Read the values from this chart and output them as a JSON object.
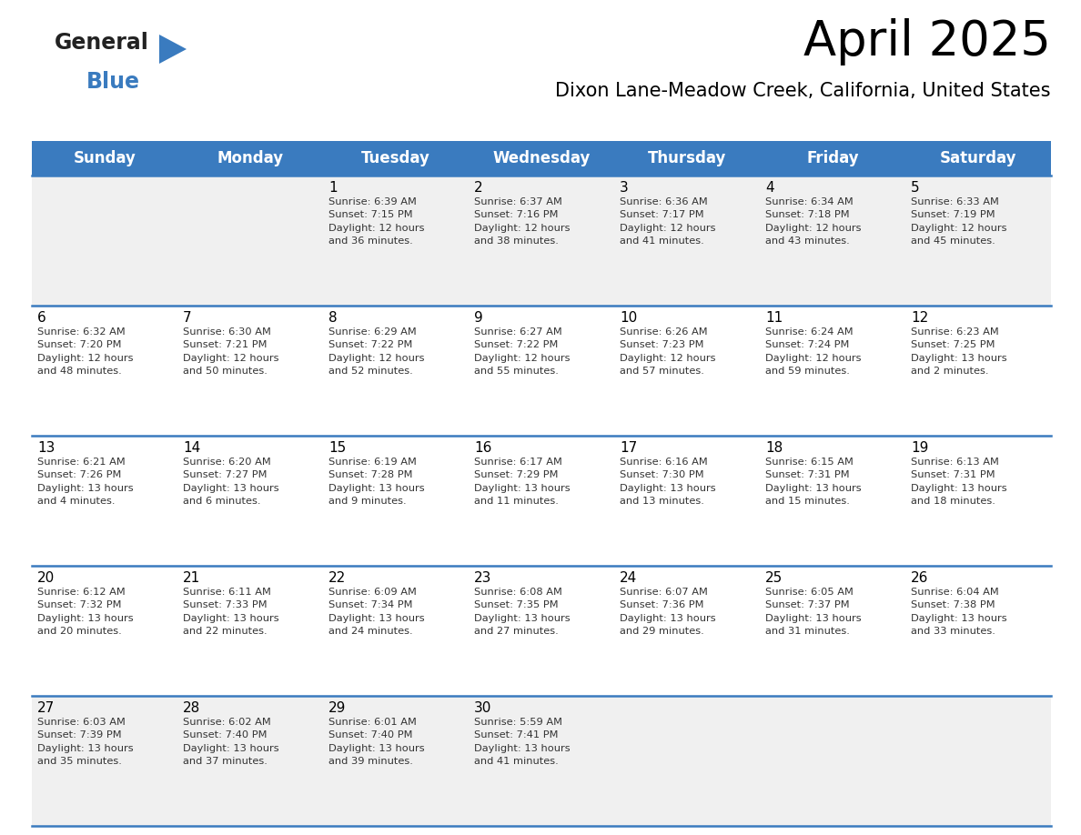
{
  "title": "April 2025",
  "subtitle": "Dixon Lane-Meadow Creek, California, United States",
  "header_bg": "#3a7bbf",
  "header_text": "#ffffff",
  "cell_bg": "#ffffff",
  "first_week_bg": "#f0f0f0",
  "separator_color": "#3a7bbf",
  "cell_text_color": "#333333",
  "date_color": "#000000",
  "day_headers": [
    "Sunday",
    "Monday",
    "Tuesday",
    "Wednesday",
    "Thursday",
    "Friday",
    "Saturday"
  ],
  "logo_general_color": "#222222",
  "logo_blue_color": "#3a7bbf",
  "logo_triangle_color": "#3a7bbf",
  "weeks": [
    {
      "bg": "#f0f0f0",
      "days": [
        {
          "date": "",
          "info": ""
        },
        {
          "date": "",
          "info": ""
        },
        {
          "date": "1",
          "info": "Sunrise: 6:39 AM\nSunset: 7:15 PM\nDaylight: 12 hours\nand 36 minutes."
        },
        {
          "date": "2",
          "info": "Sunrise: 6:37 AM\nSunset: 7:16 PM\nDaylight: 12 hours\nand 38 minutes."
        },
        {
          "date": "3",
          "info": "Sunrise: 6:36 AM\nSunset: 7:17 PM\nDaylight: 12 hours\nand 41 minutes."
        },
        {
          "date": "4",
          "info": "Sunrise: 6:34 AM\nSunset: 7:18 PM\nDaylight: 12 hours\nand 43 minutes."
        },
        {
          "date": "5",
          "info": "Sunrise: 6:33 AM\nSunset: 7:19 PM\nDaylight: 12 hours\nand 45 minutes."
        }
      ]
    },
    {
      "bg": "#ffffff",
      "days": [
        {
          "date": "6",
          "info": "Sunrise: 6:32 AM\nSunset: 7:20 PM\nDaylight: 12 hours\nand 48 minutes."
        },
        {
          "date": "7",
          "info": "Sunrise: 6:30 AM\nSunset: 7:21 PM\nDaylight: 12 hours\nand 50 minutes."
        },
        {
          "date": "8",
          "info": "Sunrise: 6:29 AM\nSunset: 7:22 PM\nDaylight: 12 hours\nand 52 minutes."
        },
        {
          "date": "9",
          "info": "Sunrise: 6:27 AM\nSunset: 7:22 PM\nDaylight: 12 hours\nand 55 minutes."
        },
        {
          "date": "10",
          "info": "Sunrise: 6:26 AM\nSunset: 7:23 PM\nDaylight: 12 hours\nand 57 minutes."
        },
        {
          "date": "11",
          "info": "Sunrise: 6:24 AM\nSunset: 7:24 PM\nDaylight: 12 hours\nand 59 minutes."
        },
        {
          "date": "12",
          "info": "Sunrise: 6:23 AM\nSunset: 7:25 PM\nDaylight: 13 hours\nand 2 minutes."
        }
      ]
    },
    {
      "bg": "#ffffff",
      "days": [
        {
          "date": "13",
          "info": "Sunrise: 6:21 AM\nSunset: 7:26 PM\nDaylight: 13 hours\nand 4 minutes."
        },
        {
          "date": "14",
          "info": "Sunrise: 6:20 AM\nSunset: 7:27 PM\nDaylight: 13 hours\nand 6 minutes."
        },
        {
          "date": "15",
          "info": "Sunrise: 6:19 AM\nSunset: 7:28 PM\nDaylight: 13 hours\nand 9 minutes."
        },
        {
          "date": "16",
          "info": "Sunrise: 6:17 AM\nSunset: 7:29 PM\nDaylight: 13 hours\nand 11 minutes."
        },
        {
          "date": "17",
          "info": "Sunrise: 6:16 AM\nSunset: 7:30 PM\nDaylight: 13 hours\nand 13 minutes."
        },
        {
          "date": "18",
          "info": "Sunrise: 6:15 AM\nSunset: 7:31 PM\nDaylight: 13 hours\nand 15 minutes."
        },
        {
          "date": "19",
          "info": "Sunrise: 6:13 AM\nSunset: 7:31 PM\nDaylight: 13 hours\nand 18 minutes."
        }
      ]
    },
    {
      "bg": "#ffffff",
      "days": [
        {
          "date": "20",
          "info": "Sunrise: 6:12 AM\nSunset: 7:32 PM\nDaylight: 13 hours\nand 20 minutes."
        },
        {
          "date": "21",
          "info": "Sunrise: 6:11 AM\nSunset: 7:33 PM\nDaylight: 13 hours\nand 22 minutes."
        },
        {
          "date": "22",
          "info": "Sunrise: 6:09 AM\nSunset: 7:34 PM\nDaylight: 13 hours\nand 24 minutes."
        },
        {
          "date": "23",
          "info": "Sunrise: 6:08 AM\nSunset: 7:35 PM\nDaylight: 13 hours\nand 27 minutes."
        },
        {
          "date": "24",
          "info": "Sunrise: 6:07 AM\nSunset: 7:36 PM\nDaylight: 13 hours\nand 29 minutes."
        },
        {
          "date": "25",
          "info": "Sunrise: 6:05 AM\nSunset: 7:37 PM\nDaylight: 13 hours\nand 31 minutes."
        },
        {
          "date": "26",
          "info": "Sunrise: 6:04 AM\nSunset: 7:38 PM\nDaylight: 13 hours\nand 33 minutes."
        }
      ]
    },
    {
      "bg": "#f0f0f0",
      "days": [
        {
          "date": "27",
          "info": "Sunrise: 6:03 AM\nSunset: 7:39 PM\nDaylight: 13 hours\nand 35 minutes."
        },
        {
          "date": "28",
          "info": "Sunrise: 6:02 AM\nSunset: 7:40 PM\nDaylight: 13 hours\nand 37 minutes."
        },
        {
          "date": "29",
          "info": "Sunrise: 6:01 AM\nSunset: 7:40 PM\nDaylight: 13 hours\nand 39 minutes."
        },
        {
          "date": "30",
          "info": "Sunrise: 5:59 AM\nSunset: 7:41 PM\nDaylight: 13 hours\nand 41 minutes."
        },
        {
          "date": "",
          "info": ""
        },
        {
          "date": "",
          "info": ""
        },
        {
          "date": "",
          "info": ""
        }
      ]
    }
  ]
}
